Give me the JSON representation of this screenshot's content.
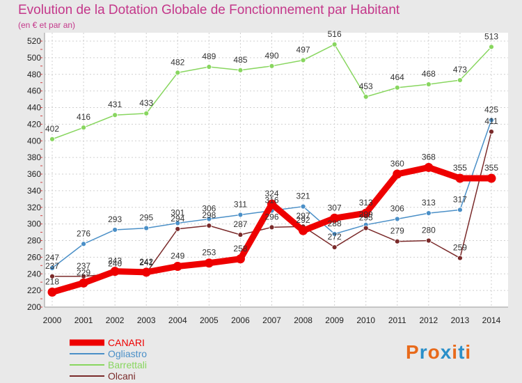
{
  "title": "Evolution de la Dotation Globale de Fonctionnement par Habitant",
  "subtitle": "(en € et par an)",
  "logo": {
    "letters": [
      "P",
      "r",
      "o",
      "x",
      "i",
      "t",
      "i"
    ],
    "colors": [
      "#e86a1b",
      "#2a8fc9",
      "#e86a1b",
      "#2a8fc9",
      "#e86a1b",
      "#2a8fc9",
      "#e86a1b"
    ]
  },
  "chart_data": {
    "type": "line",
    "x": [
      "2000",
      "2001",
      "2002",
      "2003",
      "2004",
      "2005",
      "2006",
      "2007",
      "2008",
      "2009",
      "2010",
      "2011",
      "2012",
      "2013",
      "2014"
    ],
    "ylim": [
      200,
      520
    ],
    "yticks": [
      200,
      220,
      240,
      260,
      280,
      300,
      320,
      340,
      360,
      380,
      400,
      420,
      440,
      460,
      480,
      500,
      520
    ],
    "grid": true,
    "legend_position": "bottom-left",
    "series": [
      {
        "name": "CANARI",
        "color": "#ee0000",
        "values": [
          218,
          229,
          243,
          242,
          249,
          253,
          258,
          324,
          292,
          307,
          313,
          360,
          368,
          355,
          355
        ],
        "labels": [
          "218",
          "229",
          "243",
          "242",
          "249",
          "253",
          "258",
          "324",
          "292",
          "307",
          "313",
          "360",
          "368",
          "355",
          "355"
        ]
      },
      {
        "name": "Ogliastro",
        "color": "#4a8fc7",
        "values": [
          247,
          276,
          293,
          295,
          301,
          306,
          311,
          316,
          321,
          288,
          299,
          306,
          313,
          317,
          425
        ],
        "labels": [
          "247",
          "276",
          "293",
          "295",
          "301",
          "306",
          "311",
          "316",
          "321",
          "288",
          "299",
          "306",
          "313",
          "317",
          "425"
        ]
      },
      {
        "name": "Barrettali",
        "color": "#88d65f",
        "values": [
          402,
          416,
          431,
          433,
          482,
          489,
          485,
          490,
          497,
          516,
          453,
          464,
          468,
          473,
          513
        ],
        "labels": [
          "402",
          "416",
          "431",
          "433",
          "482",
          "489",
          "485",
          "490",
          "497",
          "516",
          "453",
          "464",
          "468",
          "473",
          "513"
        ]
      },
      {
        "name": "Olcani",
        "color": "#7a2a2a",
        "values": [
          237,
          237,
          240,
          241,
          294,
          298,
          287,
          296,
          297,
          272,
          295,
          279,
          280,
          259,
          411
        ],
        "labels": [
          "237",
          "237",
          "240",
          "241",
          "294",
          "298",
          "287",
          "296",
          "297",
          "272",
          "295",
          "279",
          "280",
          "259",
          "411"
        ]
      }
    ]
  }
}
